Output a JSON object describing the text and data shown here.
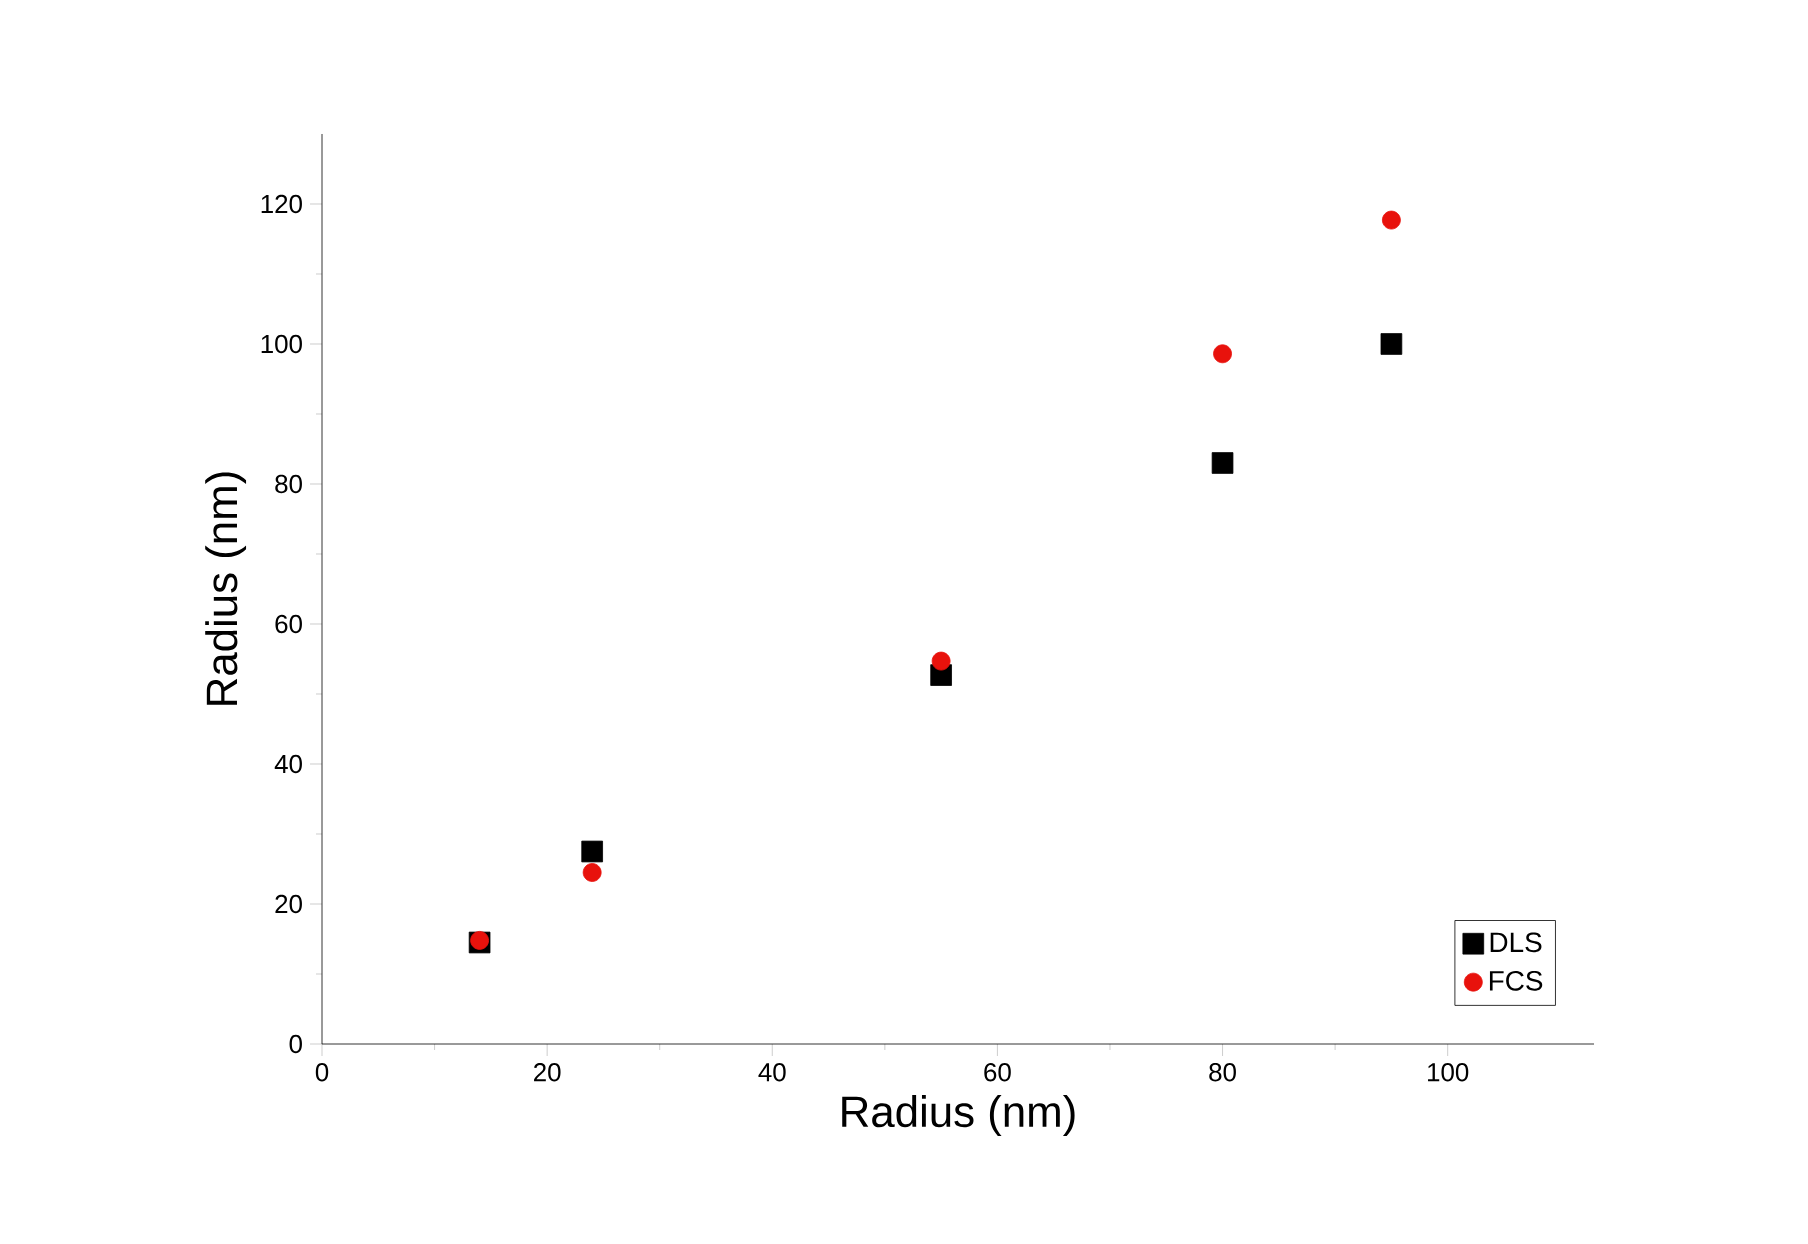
{
  "chart_data": {
    "type": "scatter",
    "xlabel": "Radius (nm)",
    "ylabel": "Radius (nm)",
    "xlim": [
      0,
      113
    ],
    "ylim": [
      0,
      130
    ],
    "xticks": [
      0,
      20,
      40,
      60,
      80,
      100
    ],
    "yticks": [
      0,
      20,
      40,
      60,
      80,
      100,
      120
    ],
    "grid": false,
    "legend": "bottom right",
    "series": [
      {
        "name": "DLS",
        "color": "#000000",
        "marker": "square",
        "x": [
          14,
          24,
          55,
          80,
          95
        ],
        "values": [
          14.5,
          27.5,
          52.7,
          83,
          100
        ]
      },
      {
        "name": "FCS",
        "color": "#e8120c",
        "marker": "circle",
        "x": [
          14,
          24,
          55,
          80,
          95
        ],
        "values": [
          14.8,
          24.5,
          54.7,
          98.6,
          117.7
        ]
      }
    ]
  }
}
